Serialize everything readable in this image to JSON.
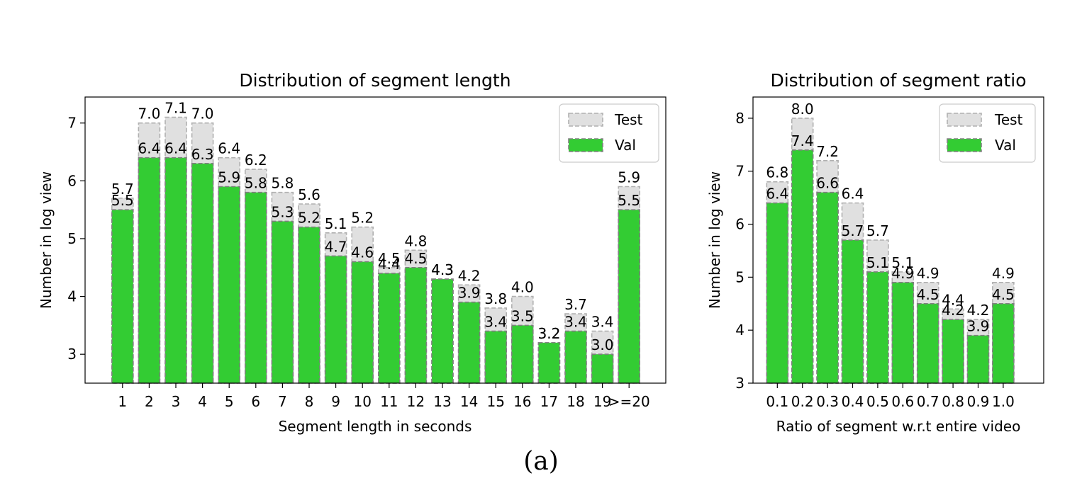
{
  "figure_caption": "(a)",
  "chart_data": [
    {
      "type": "bar",
      "title": "Distribution of segment length",
      "xlabel": "Segment length in seconds",
      "ylabel": "Number in log view",
      "ylim": [
        2.5,
        7.45
      ],
      "yticks": [
        "3",
        "4",
        "5",
        "6",
        "7"
      ],
      "legend_position": "top-right",
      "categories": [
        "1",
        "2",
        "3",
        "4",
        "5",
        "6",
        "7",
        "8",
        "9",
        "10",
        "11",
        "12",
        "13",
        "14",
        "15",
        "16",
        "17",
        "18",
        "19",
        ">=20"
      ],
      "series": [
        {
          "name": "Test",
          "color": "#e0e0e0",
          "edge": "#b0b0b0",
          "values": [
            5.7,
            7.0,
            7.1,
            7.0,
            6.4,
            6.2,
            5.8,
            5.6,
            5.1,
            5.2,
            4.5,
            4.8,
            4.3,
            4.2,
            3.8,
            4.0,
            3.2,
            3.7,
            3.4,
            5.9
          ],
          "labels": [
            "5.7",
            "7.0",
            "7.1",
            "7.0",
            "6.4",
            "6.2",
            "5.8",
            "5.6",
            "5.1",
            "5.2",
            "4.5",
            "4.8",
            "4.3",
            "4.2",
            "3.8",
            "4.0",
            "3.2",
            "3.7",
            "3.4",
            "5.9"
          ]
        },
        {
          "name": "Val",
          "color": "#33cc33",
          "edge": "#808080",
          "values": [
            5.5,
            6.4,
            6.4,
            6.3,
            5.9,
            5.8,
            5.3,
            5.2,
            4.7,
            4.6,
            4.4,
            4.5,
            4.3,
            3.9,
            3.4,
            3.5,
            3.2,
            3.4,
            3.0,
            5.5
          ],
          "labels": [
            "5.5",
            "6.4",
            "6.4",
            "6.3",
            "5.9",
            "5.8",
            "5.3",
            "5.2",
            "4.7",
            "4.6",
            "4.4",
            "4.5",
            "4.3",
            "3.9",
            "3.4",
            "3.5",
            "3.2",
            "3.4",
            "3.0",
            "5.5"
          ]
        }
      ]
    },
    {
      "type": "bar",
      "title": "Distribution of segment ratio",
      "xlabel": "Ratio of segment w.r.t entire video",
      "ylabel": "Number in log view",
      "ylim": [
        3.0,
        8.4
      ],
      "yticks": [
        "3",
        "4",
        "5",
        "6",
        "7",
        "8"
      ],
      "legend_position": "top-right",
      "categories": [
        "0.1",
        "0.2",
        "0.3",
        "0.4",
        "0.5",
        "0.6",
        "0.7",
        "0.8",
        "0.9",
        "1.0"
      ],
      "series": [
        {
          "name": "Test",
          "color": "#e0e0e0",
          "edge": "#b0b0b0",
          "values": [
            6.8,
            8.0,
            7.2,
            6.4,
            5.7,
            5.1,
            4.9,
            4.4,
            4.2,
            4.9
          ],
          "labels": [
            "6.8",
            "8.0",
            "7.2",
            "6.4",
            "5.7",
            "5.1",
            "4.9",
            "4.4",
            "4.2",
            "4.9"
          ]
        },
        {
          "name": "Val",
          "color": "#33cc33",
          "edge": "#808080",
          "values": [
            6.4,
            7.4,
            6.6,
            5.7,
            5.1,
            4.9,
            4.5,
            4.2,
            3.9,
            4.5
          ],
          "labels": [
            "6.4",
            "7.4",
            "6.6",
            "5.7",
            "5.1",
            "4.9",
            "4.5",
            "4.2",
            "3.9",
            "4.5"
          ]
        }
      ]
    }
  ]
}
